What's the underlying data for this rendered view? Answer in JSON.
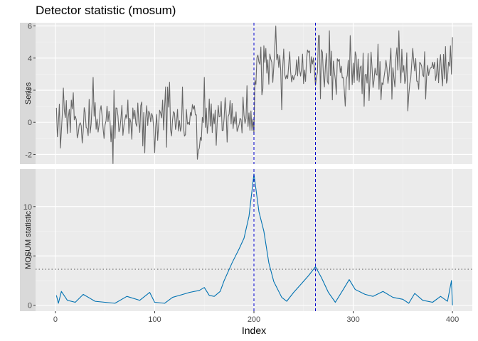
{
  "chart_data": {
    "type": "line",
    "title": "Detector statistic (mosum)",
    "xlabel": "Index",
    "xlim": [
      -20,
      420
    ],
    "x_ticks": [
      0,
      100,
      200,
      300,
      400
    ],
    "changepoints": [
      200,
      262
    ],
    "changepoint_color": "#0000CC",
    "panels": [
      {
        "name": "Series",
        "ylim": [
          -2.6,
          6.2
        ],
        "y_ticks": [
          -2,
          0,
          2,
          4,
          6
        ],
        "line_color": "#666666",
        "series": {
          "name": "Series",
          "segments": [
            {
              "x_range": [
                1,
                200
              ],
              "mean": 0.2,
              "sd": 0.85
            },
            {
              "x_range": [
                201,
                400
              ],
              "mean": 3.2,
              "sd": 0.85
            }
          ],
          "values": [
            {
              "x": 1,
              "y": 0.9
            },
            {
              "x": 2,
              "y": -0.9
            },
            {
              "x": 5,
              "y": -1.6
            },
            {
              "x": 30,
              "y": 0.6
            },
            {
              "x": 38,
              "y": 2.8
            },
            {
              "x": 90,
              "y": -1.9
            },
            {
              "x": 115,
              "y": 2.5
            },
            {
              "x": 128,
              "y": 2.2
            },
            {
              "x": 143,
              "y": -2.3
            },
            {
              "x": 150,
              "y": 2.8
            },
            {
              "x": 199,
              "y": 0.2
            },
            {
              "x": 200,
              "y": -0.7
            },
            {
              "x": 201,
              "y": 2.6
            },
            {
              "x": 212,
              "y": 4.6
            },
            {
              "x": 265,
              "y": 5.4
            },
            {
              "x": 271,
              "y": 2.2
            },
            {
              "x": 276,
              "y": 5.7
            },
            {
              "x": 297,
              "y": 5.4
            },
            {
              "x": 311,
              "y": 1.0
            },
            {
              "x": 346,
              "y": 5.7
            },
            {
              "x": 360,
              "y": 4.6
            },
            {
              "x": 399,
              "y": 3.0
            },
            {
              "x": 400,
              "y": 5.3
            }
          ]
        }
      },
      {
        "name": "MOSUM statistic",
        "ylim": [
          -0.6,
          13.8
        ],
        "y_ticks": [
          0,
          5,
          10
        ],
        "line_color": "#0072B2",
        "threshold": 3.65,
        "series": {
          "name": "MOSUM statistic",
          "values": [
            {
              "x": 1,
              "y": 1.0
            },
            {
              "x": 3,
              "y": 0.2
            },
            {
              "x": 6,
              "y": 1.4
            },
            {
              "x": 12,
              "y": 0.5
            },
            {
              "x": 20,
              "y": 0.3
            },
            {
              "x": 28,
              "y": 1.1
            },
            {
              "x": 40,
              "y": 0.4
            },
            {
              "x": 60,
              "y": 0.2
            },
            {
              "x": 72,
              "y": 0.9
            },
            {
              "x": 85,
              "y": 0.5
            },
            {
              "x": 95,
              "y": 1.3
            },
            {
              "x": 100,
              "y": 0.3
            },
            {
              "x": 110,
              "y": 0.2
            },
            {
              "x": 118,
              "y": 0.8
            },
            {
              "x": 125,
              "y": 1.0
            },
            {
              "x": 135,
              "y": 1.3
            },
            {
              "x": 145,
              "y": 1.5
            },
            {
              "x": 150,
              "y": 1.8
            },
            {
              "x": 155,
              "y": 1.0
            },
            {
              "x": 160,
              "y": 0.9
            },
            {
              "x": 166,
              "y": 1.4
            },
            {
              "x": 170,
              "y": 2.5
            },
            {
              "x": 178,
              "y": 4.3
            },
            {
              "x": 185,
              "y": 5.7
            },
            {
              "x": 190,
              "y": 6.8
            },
            {
              "x": 195,
              "y": 9.0
            },
            {
              "x": 200,
              "y": 13.3
            },
            {
              "x": 205,
              "y": 9.5
            },
            {
              "x": 210,
              "y": 7.5
            },
            {
              "x": 215,
              "y": 4.3
            },
            {
              "x": 220,
              "y": 2.4
            },
            {
              "x": 228,
              "y": 0.8
            },
            {
              "x": 233,
              "y": 0.4
            },
            {
              "x": 240,
              "y": 1.3
            },
            {
              "x": 248,
              "y": 2.2
            },
            {
              "x": 255,
              "y": 3.0
            },
            {
              "x": 262,
              "y": 3.9
            },
            {
              "x": 268,
              "y": 2.8
            },
            {
              "x": 275,
              "y": 1.3
            },
            {
              "x": 282,
              "y": 0.3
            },
            {
              "x": 290,
              "y": 1.6
            },
            {
              "x": 296,
              "y": 2.6
            },
            {
              "x": 302,
              "y": 1.6
            },
            {
              "x": 312,
              "y": 1.1
            },
            {
              "x": 320,
              "y": 0.9
            },
            {
              "x": 330,
              "y": 1.4
            },
            {
              "x": 340,
              "y": 0.8
            },
            {
              "x": 350,
              "y": 0.6
            },
            {
              "x": 356,
              "y": 0.2
            },
            {
              "x": 362,
              "y": 1.2
            },
            {
              "x": 370,
              "y": 0.5
            },
            {
              "x": 380,
              "y": 0.3
            },
            {
              "x": 388,
              "y": 0.9
            },
            {
              "x": 395,
              "y": 0.4
            },
            {
              "x": 399,
              "y": 2.5
            },
            {
              "x": 400,
              "y": 0.0
            }
          ]
        }
      }
    ]
  }
}
